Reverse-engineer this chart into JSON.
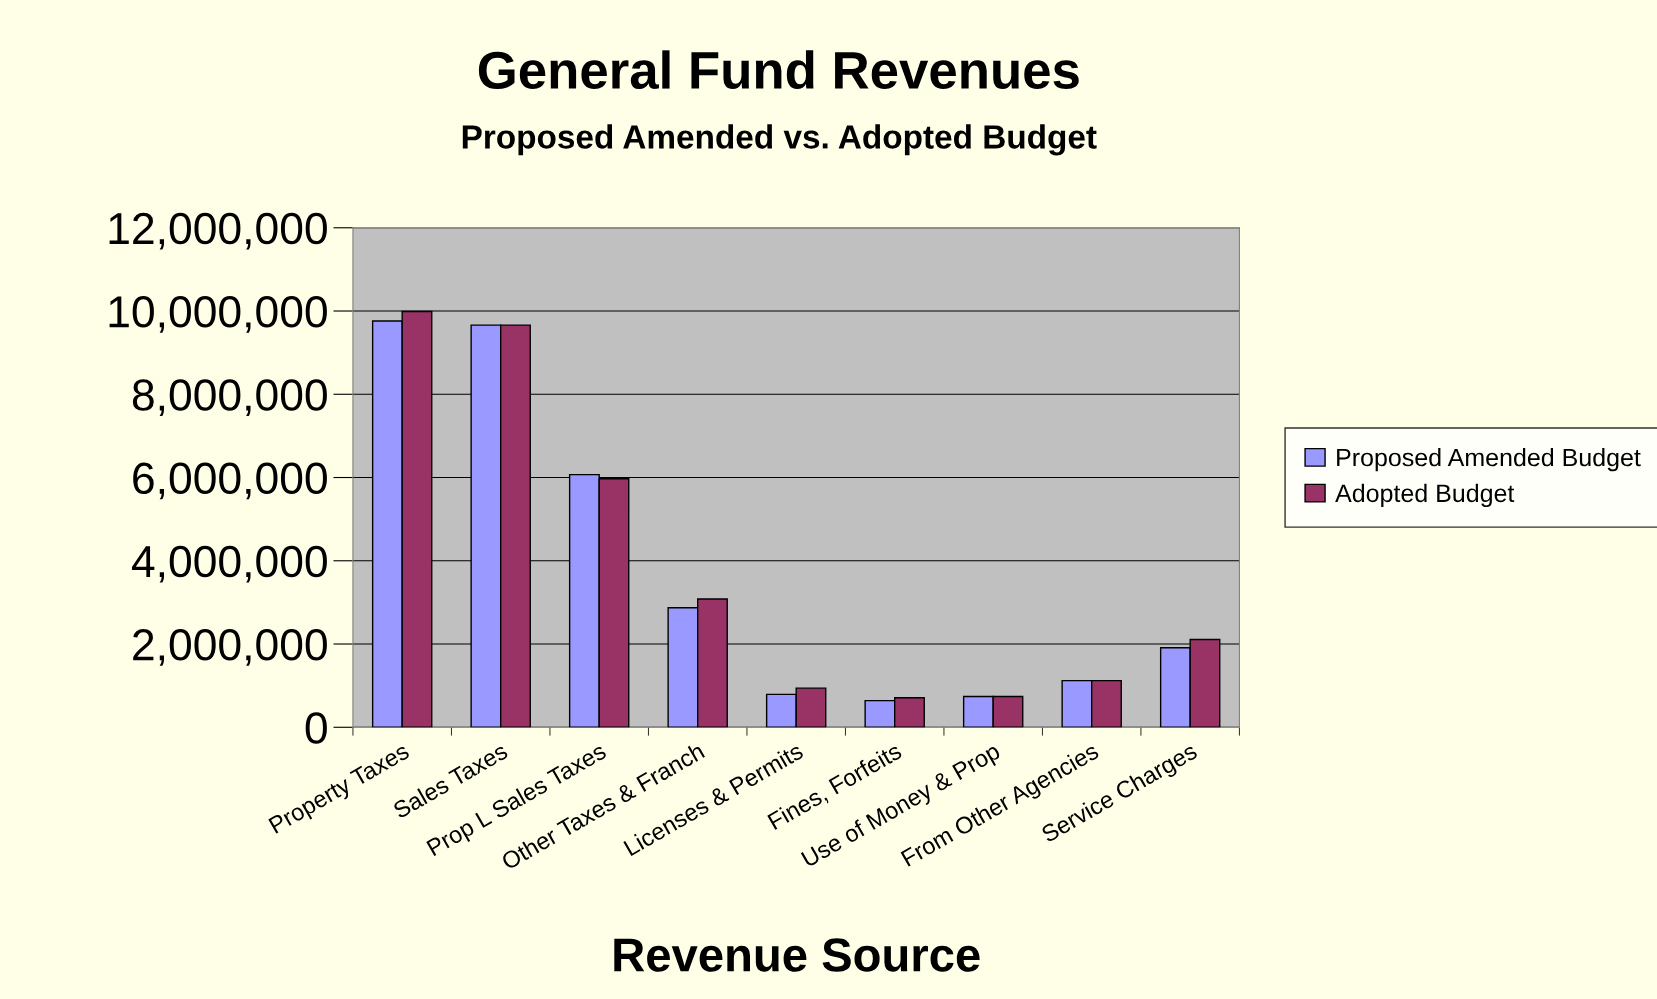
{
  "chart_data": {
    "type": "bar",
    "title": "General Fund Revenues",
    "subtitle": "Proposed Amended vs. Adopted Budget",
    "xlabel": "Revenue Source",
    "categories": [
      "Property Taxes",
      "Sales Taxes",
      "Prop L Sales Taxes",
      "Other Taxes & Franch",
      "Licenses & Permits",
      "Fines, Forfeits",
      "Use of Money & Prop",
      "From Other Agencies",
      "Service Charges"
    ],
    "series": [
      {
        "name": "Proposed Amended Budget",
        "color": "#9999ff",
        "values": [
          9760000,
          9660000,
          6070000,
          2870000,
          790000,
          640000,
          740000,
          1120000,
          1910000
        ]
      },
      {
        "name": "Adopted Budget",
        "color": "#993366",
        "values": [
          9990000,
          9660000,
          5970000,
          3080000,
          940000,
          710000,
          740000,
          1120000,
          2110000
        ]
      }
    ],
    "ylim": [
      0,
      12000000
    ],
    "yticks": [
      {
        "value": 0,
        "label": "0"
      },
      {
        "value": 2000000,
        "label": "2,000,000"
      },
      {
        "value": 4000000,
        "label": "4,000,000"
      },
      {
        "value": 6000000,
        "label": "6,000,000"
      },
      {
        "value": 8000000,
        "label": "8,000,000"
      },
      {
        "value": 10000000,
        "label": "10,000,000"
      },
      {
        "value": 12000000,
        "label": "12,000,000"
      }
    ],
    "grid": "y",
    "legend": "right"
  }
}
